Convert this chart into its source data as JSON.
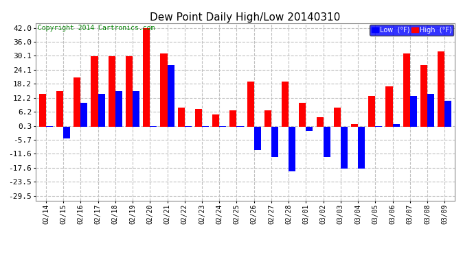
{
  "title": "Dew Point Daily High/Low 20140310",
  "copyright": "Copyright 2014 Cartronics.com",
  "dates": [
    "02/14",
    "02/15",
    "02/16",
    "02/17",
    "02/18",
    "02/19",
    "02/20",
    "02/21",
    "02/22",
    "02/23",
    "02/24",
    "02/25",
    "02/26",
    "02/27",
    "02/28",
    "03/01",
    "03/02",
    "03/03",
    "03/04",
    "03/05",
    "03/06",
    "03/07",
    "03/08",
    "03/09"
  ],
  "high": [
    14.0,
    15.0,
    21.0,
    30.0,
    30.0,
    30.0,
    42.0,
    31.0,
    8.0,
    7.5,
    5.0,
    7.0,
    19.0,
    7.0,
    19.0,
    10.0,
    4.0,
    8.0,
    1.0,
    13.0,
    17.0,
    31.0,
    26.0,
    32.0
  ],
  "low": [
    0.3,
    -5.0,
    10.0,
    14.0,
    15.0,
    15.0,
    0.3,
    26.0,
    0.3,
    0.3,
    0.3,
    0.3,
    -10.0,
    -13.0,
    -19.0,
    -2.0,
    -13.0,
    -18.0,
    -18.0,
    0.3,
    1.0,
    13.0,
    14.0,
    11.0
  ],
  "high_color": "#ff0000",
  "low_color": "#0000ff",
  "bg_color": "#ffffff",
  "grid_color": "#c0c0c0",
  "yticks": [
    42.0,
    36.0,
    30.1,
    24.1,
    18.2,
    12.2,
    6.2,
    0.3,
    -5.7,
    -11.6,
    -17.6,
    -23.5,
    -29.5
  ],
  "ylim": [
    -31.5,
    44.0
  ],
  "title_fontsize": 11,
  "copyright_fontsize": 7,
  "legend_high_label": "High  (°F)",
  "legend_low_label": "Low  (°F)"
}
